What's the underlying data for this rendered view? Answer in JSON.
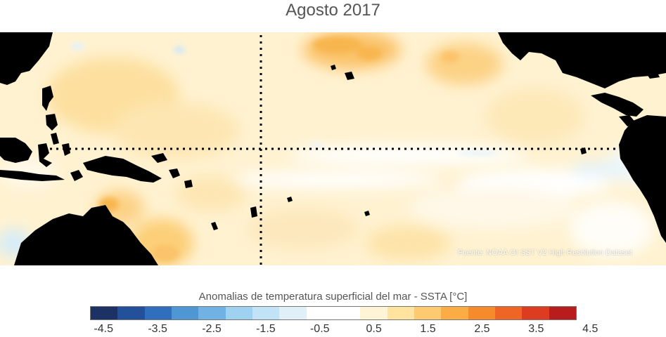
{
  "title": "Agosto 2017",
  "source": "Fuente: NOAA OI SST V2 High Resolution Dataset",
  "legend": {
    "title": "Anomalias de temperatura superficial del mar - SSTA  [°C]",
    "ticks": [
      "-4.5",
      "-3.5",
      "-2.5",
      "-1.5",
      "-0.5",
      "0.5",
      "1.5",
      "2.5",
      "3.5",
      "4.5"
    ],
    "colors": [
      "#1c3264",
      "#22509a",
      "#2f6fbd",
      "#4f96d4",
      "#6fb2e3",
      "#9ed2f0",
      "#c1e3f5",
      "#dff0f8",
      "#ffffff",
      "#ffffff",
      "#fff4d6",
      "#ffe49f",
      "#fdca6f",
      "#fbac45",
      "#f68b2c",
      "#ee6526",
      "#de3c20",
      "#b91c1c"
    ]
  },
  "map": {
    "land_color": "#000000",
    "ocean_colors": {
      "base": "#fff2d1",
      "near_zero": "#ffffff",
      "warm": "#fde3a5",
      "warmer": "#fccf78",
      "hot": "#f8b650",
      "cool": "#dff0f8",
      "cooler": "#bfe2f5"
    },
    "reference_lines": [
      "equator",
      "dateline"
    ]
  }
}
